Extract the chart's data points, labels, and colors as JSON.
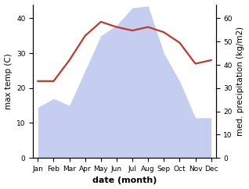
{
  "months": [
    "Jan",
    "Feb",
    "Mar",
    "Apr",
    "May",
    "Jun",
    "Jul",
    "Aug",
    "Sep",
    "Oct",
    "Nov",
    "Dec"
  ],
  "temperature": [
    22.0,
    22.0,
    28.0,
    35.0,
    39.0,
    37.5,
    36.5,
    37.5,
    36.0,
    33.0,
    27.0,
    28.0
  ],
  "precipitation": [
    14.5,
    17.0,
    15.0,
    25.0,
    35.0,
    38.0,
    43.0,
    43.5,
    30.0,
    22.0,
    11.5,
    11.5
  ],
  "temp_color": "#c0392b",
  "precip_fill_color": "#c5cdf0",
  "precip_edge_color": "#aab4e8",
  "ylabel_left": "max temp (C)",
  "ylabel_right": "med. precipitation (kg/m2)",
  "xlabel": "date (month)",
  "ylim_left": [
    0,
    44
  ],
  "ylim_right": [
    0,
    66
  ],
  "yticks_left": [
    0,
    10,
    20,
    30,
    40
  ],
  "yticks_right": [
    0,
    10,
    20,
    30,
    40,
    50,
    60
  ],
  "label_fontsize": 7.5,
  "tick_fontsize": 6.5,
  "xlabel_fontsize": 8,
  "linewidth": 1.6
}
